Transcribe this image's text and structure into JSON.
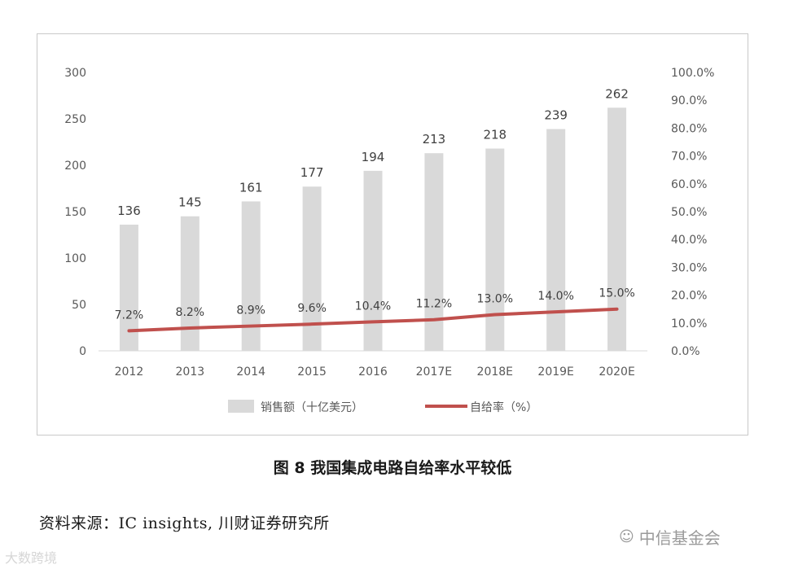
{
  "chart_data": {
    "type": "bar",
    "categories": [
      "2012",
      "2013",
      "2014",
      "2015",
      "2016",
      "2017E",
      "2018E",
      "2019E",
      "2020E"
    ],
    "series": [
      {
        "name": "销售额（十亿美元）",
        "type": "bar",
        "axis": "left",
        "color": "#d9d9d9",
        "values": [
          136,
          145,
          161,
          177,
          194,
          213,
          218,
          239,
          262
        ],
        "labels": [
          "136",
          "145",
          "161",
          "177",
          "194",
          "213",
          "218",
          "239",
          "262"
        ]
      },
      {
        "name": "自给率（%）",
        "type": "line",
        "axis": "right",
        "color": "#c0504d",
        "values": [
          7.2,
          8.2,
          8.9,
          9.6,
          10.4,
          11.2,
          13.0,
          14.0,
          15.0
        ],
        "labels": [
          "7.2%",
          "8.2%",
          "8.9%",
          "9.6%",
          "10.4%",
          "11.2%",
          "13.0%",
          "14.0%",
          "15.0%"
        ]
      }
    ],
    "y_left": {
      "ylim": [
        0,
        300
      ],
      "ticks": [
        "0",
        "50",
        "100",
        "150",
        "200",
        "250",
        "300"
      ]
    },
    "y_right": {
      "ylim": [
        0,
        100
      ],
      "ticks": [
        "0.0%",
        "10.0%",
        "20.0%",
        "30.0%",
        "40.0%",
        "50.0%",
        "60.0%",
        "70.0%",
        "80.0%",
        "90.0%",
        "100.0%"
      ]
    },
    "grid": false,
    "legend": "bottom"
  },
  "caption": "图 8  我国集成电路自给率水平较低",
  "source": "资料来源：IC insights, 川财证券研究所",
  "watermarks": {
    "left": "大数跨境",
    "right": "中信基金会"
  }
}
